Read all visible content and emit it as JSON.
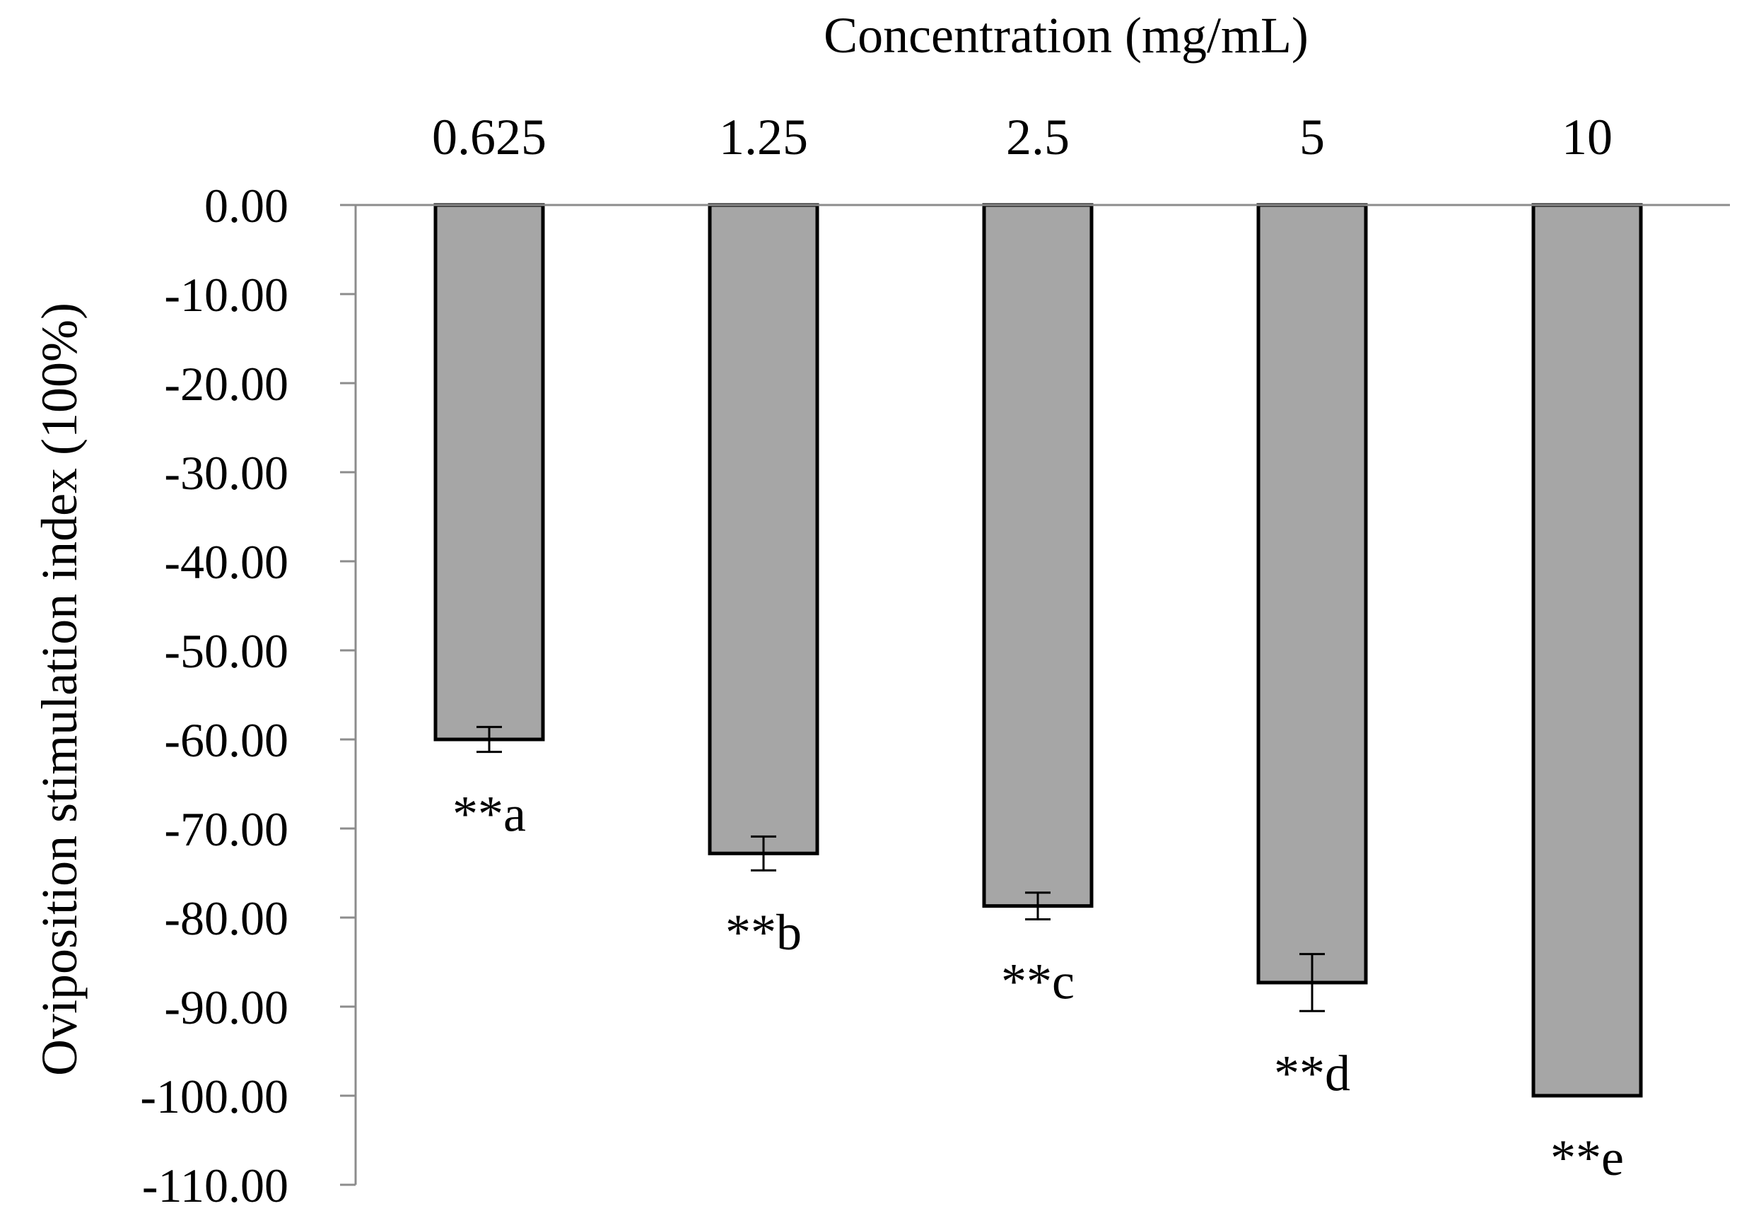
{
  "chart_data": {
    "type": "bar",
    "title": "",
    "xlabel": "Concentration (mg/mL)",
    "ylabel": "Oviposition stimulation index (100%)",
    "categories": [
      "0.625",
      "1.25",
      "2.5",
      "5",
      "10"
    ],
    "values": [
      -60.0,
      -72.8,
      -78.7,
      -87.3,
      -100.0
    ],
    "errors": [
      1.4,
      1.9,
      1.5,
      3.2,
      0
    ],
    "annotations": [
      "**a",
      "**b",
      "**c",
      "**d",
      "**e"
    ],
    "ylim": [
      -110,
      0
    ],
    "yticks": [
      0,
      -10,
      -20,
      -30,
      -40,
      -50,
      -60,
      -70,
      -80,
      -90,
      -100,
      -110
    ],
    "ytick_labels": [
      "0.00",
      "-10.00",
      "-20.00",
      "-30.00",
      "-40.00",
      "-50.00",
      "-60.00",
      "-70.00",
      "-80.00",
      "-90.00",
      "-100.00",
      "-110.00"
    ],
    "grid": false,
    "legend": "none",
    "bar_color": "#a6a6a6",
    "bar_edge_color": "#000000",
    "axis_color": "#8c8c8c"
  }
}
